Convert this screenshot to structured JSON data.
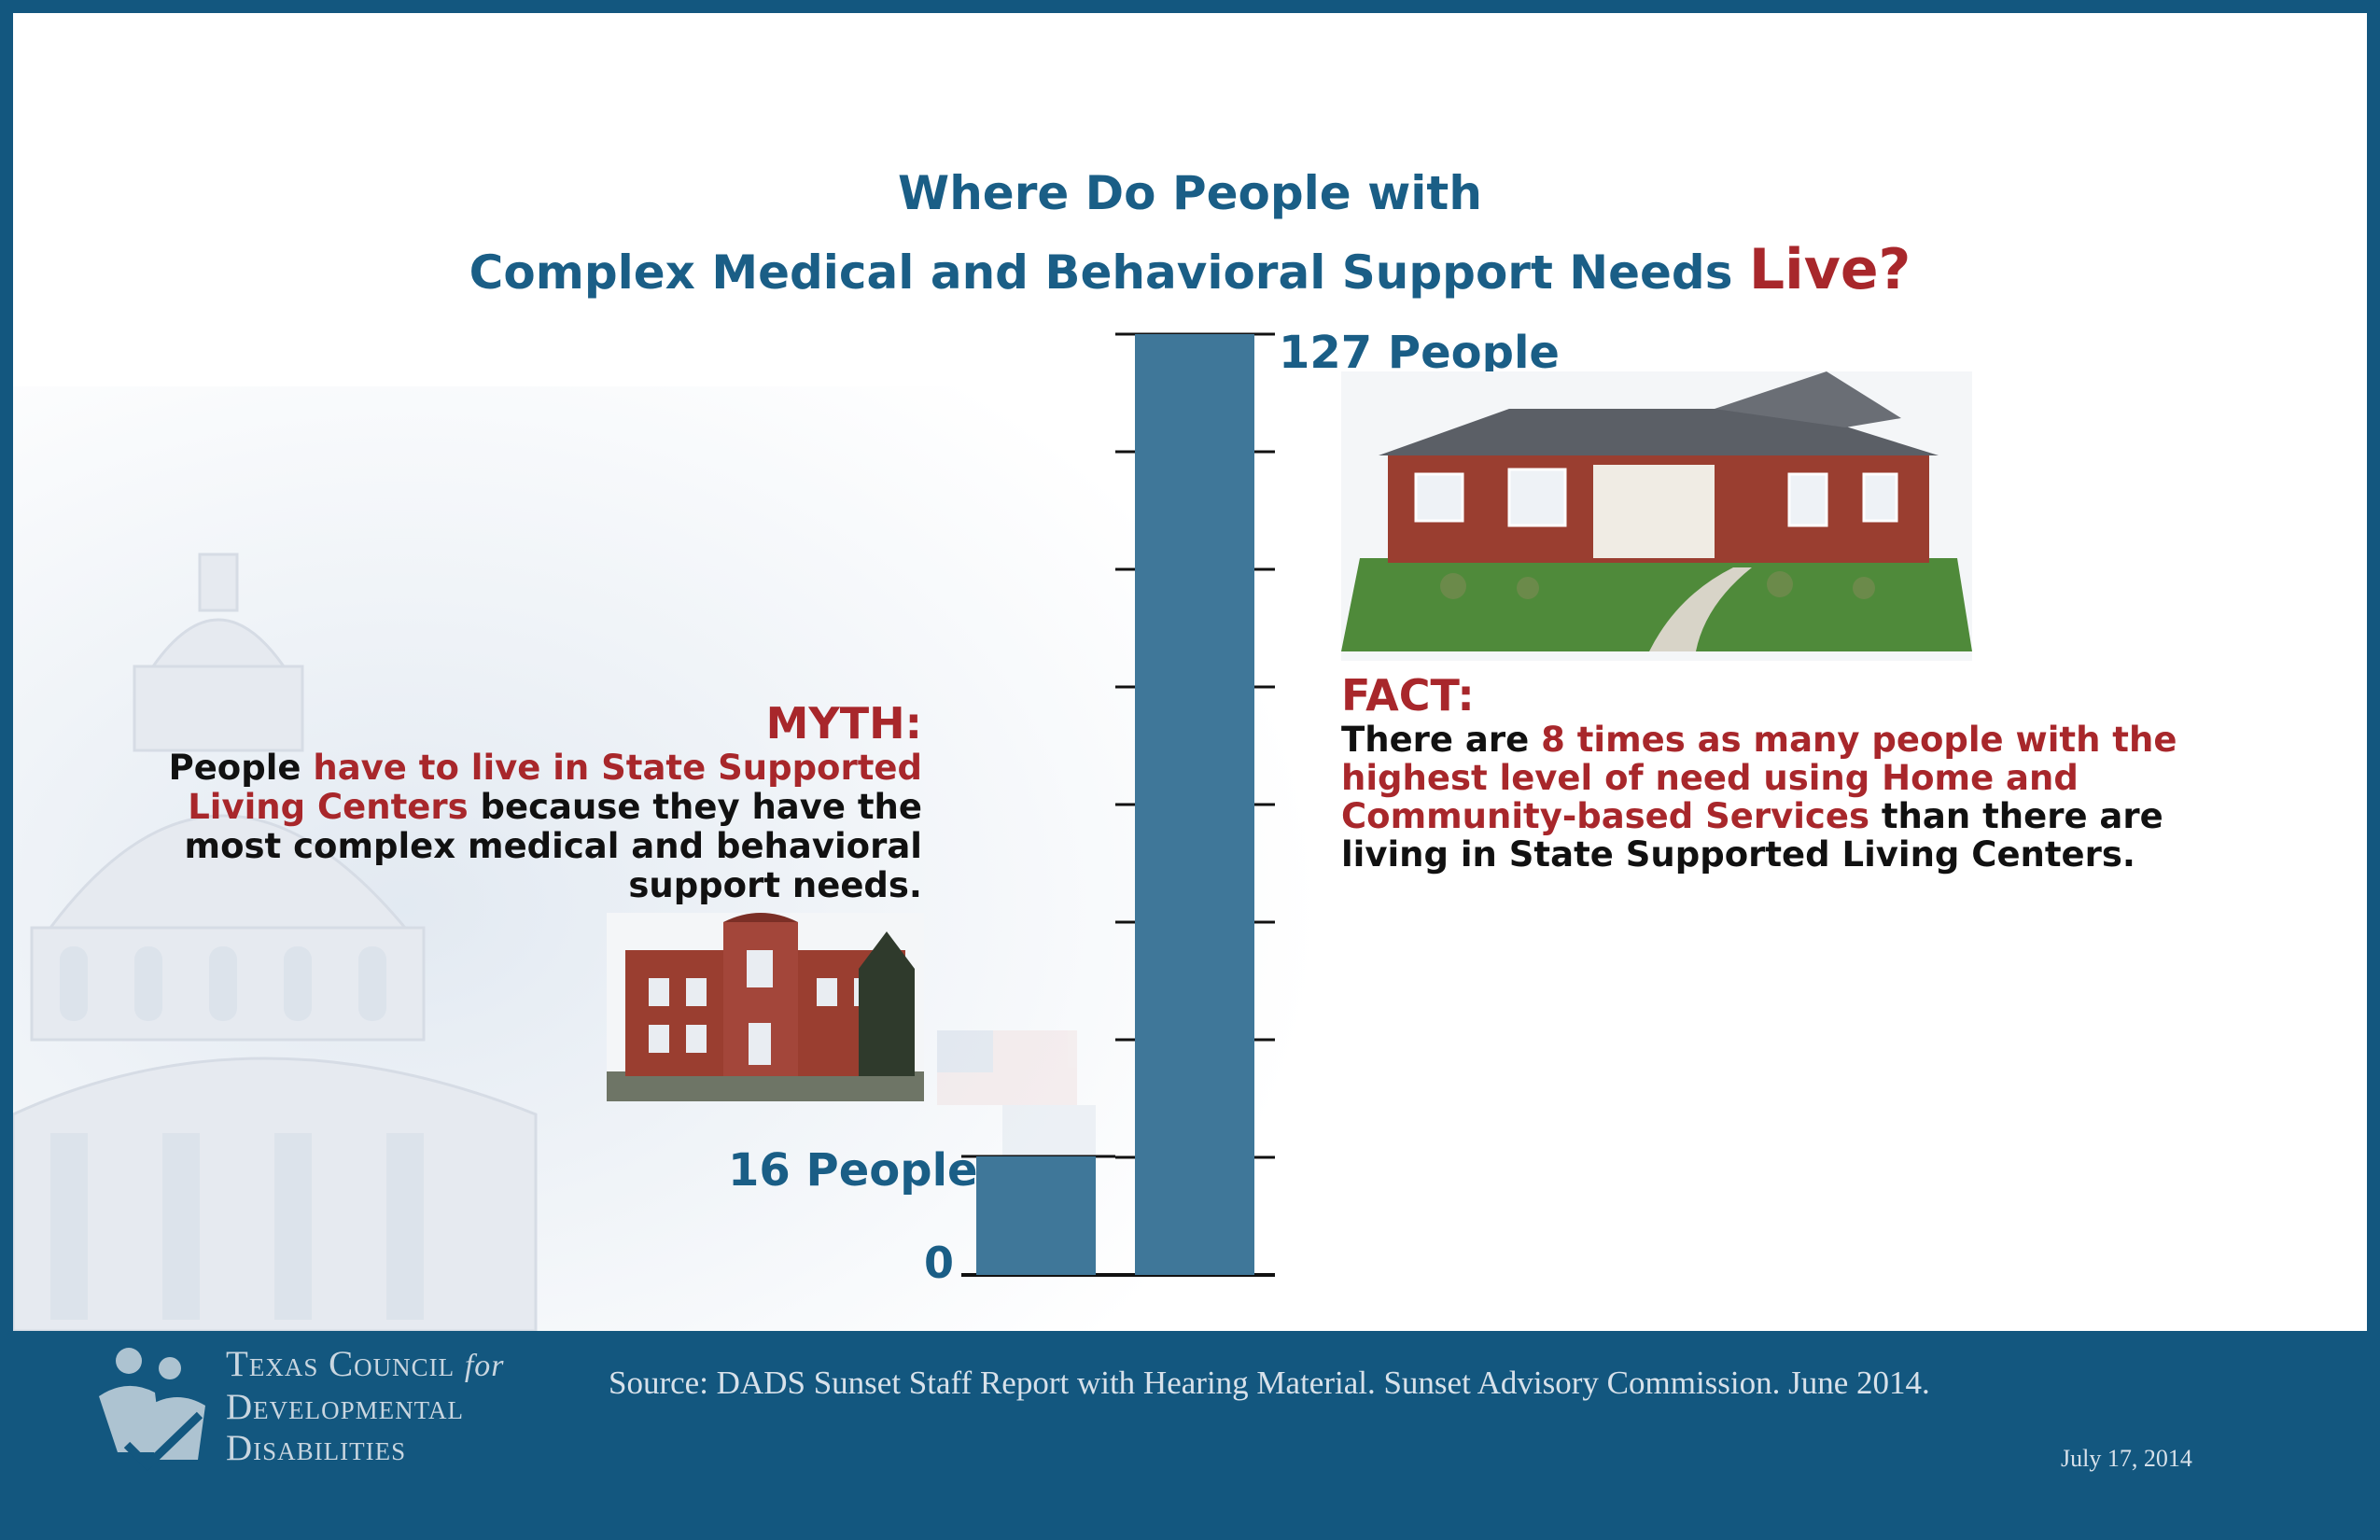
{
  "title": {
    "line1": "Where Do People with",
    "line2": "Complex Medical and Behavioral Support Needs",
    "emphasis": "Live?"
  },
  "myth": {
    "heading": "MYTH:",
    "text_1": "People ",
    "highlight": "have to live in State Supported Living Centers",
    "text_2": " because they have the most complex medical and behavioral support needs."
  },
  "fact": {
    "heading": "FACT:",
    "text_1": "There are ",
    "highlight": "8 times as many people with the highest level of need using Home and Community-based Services",
    "text_2": " than there are living in State Supported Living Centers."
  },
  "footer": {
    "org_line1": "Texas Council",
    "org_for": "for",
    "org_line2": "Developmental",
    "org_line3": "Disabilities",
    "source": "Source: DADS Sunset Staff Report with Hearing Material. Sunset Advisory Commission. June 2014.",
    "date": "July 17, 2014"
  },
  "colors": {
    "accent_blue": "#1a5e86",
    "accent_red": "#a8272b",
    "bar_blue": "#3f7799",
    "frame_blue": "#13577f"
  },
  "icons": [
    "capitol-dome-image",
    "house-image",
    "institution-building-image",
    "tcdd-logo-icon"
  ],
  "chart_data": {
    "type": "bar",
    "categories": [
      "State Supported Living Centers",
      "Home and Community-based Services"
    ],
    "values": [
      16,
      127
    ],
    "data_labels": [
      "16 People",
      "127 People"
    ],
    "tick_labels": [
      "0"
    ],
    "ylim": [
      0,
      127
    ],
    "gridline_count": 8,
    "xlabel": "",
    "ylabel": ""
  }
}
